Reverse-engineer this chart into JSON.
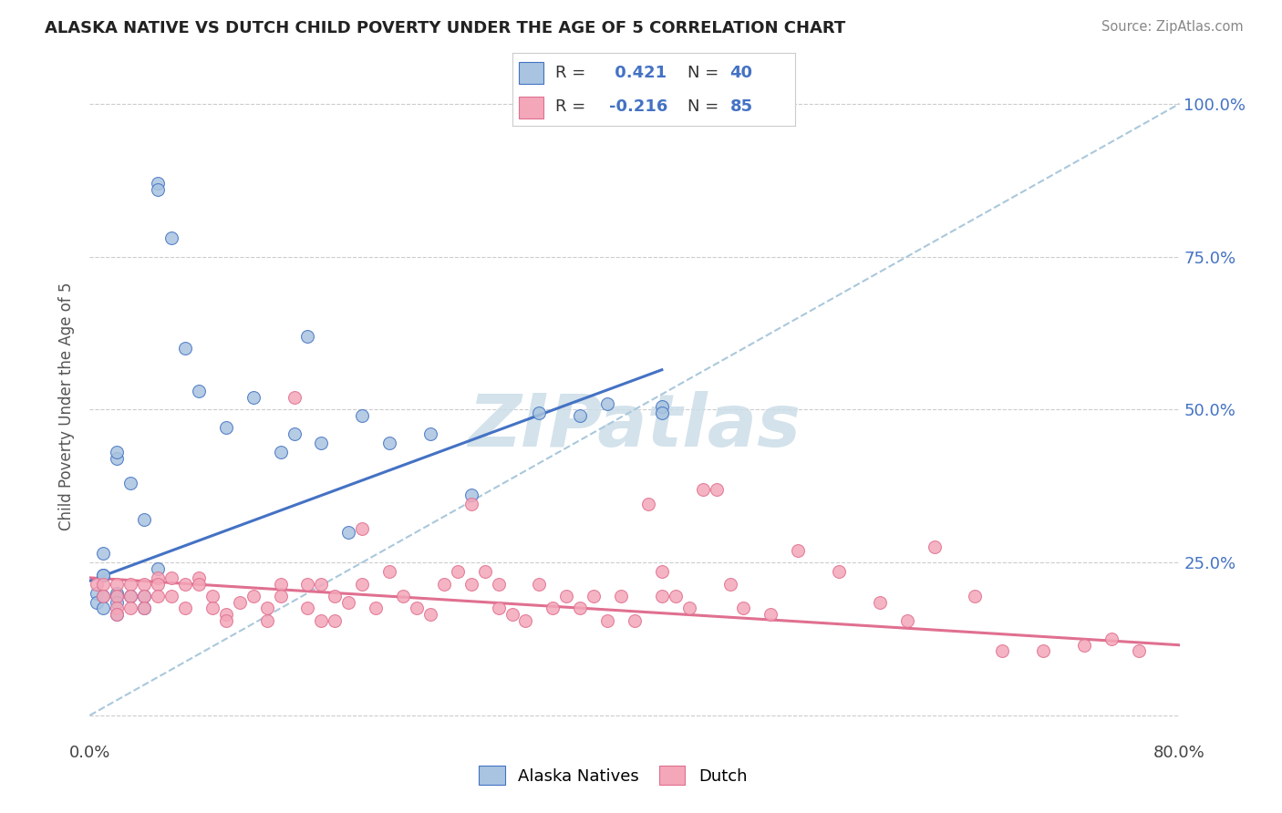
{
  "title": "ALASKA NATIVE VS DUTCH CHILD POVERTY UNDER THE AGE OF 5 CORRELATION CHART",
  "source": "Source: ZipAtlas.com",
  "ylabel": "Child Poverty Under the Age of 5",
  "xlim": [
    0.0,
    0.8
  ],
  "ylim": [
    -0.04,
    1.05
  ],
  "ytick_vals": [
    0.0,
    0.25,
    0.5,
    0.75,
    1.0
  ],
  "ytick_labels_right": [
    "",
    "25.0%",
    "50.0%",
    "75.0%",
    "100.0%"
  ],
  "alaska_R": 0.421,
  "alaska_N": 40,
  "dutch_R": -0.216,
  "dutch_N": 85,
  "alaska_color": "#a8c4e0",
  "dutch_color": "#f4a7b9",
  "alaska_line_color": "#4472c4",
  "dutch_line_color": "#e07090",
  "dashed_line_color": "#aac8dc",
  "watermark_color": "#ccdde8",
  "background_color": "#ffffff",
  "alaska_line_x": [
    0.0,
    0.42
  ],
  "alaska_line_y": [
    0.22,
    0.565
  ],
  "dutch_line_x": [
    0.0,
    0.8
  ],
  "dutch_line_y": [
    0.225,
    0.115
  ],
  "dash_line_x": [
    0.0,
    0.8
  ],
  "dash_line_y": [
    0.0,
    1.0
  ],
  "alaska_scatter_x": [
    0.005,
    0.005,
    0.01,
    0.01,
    0.01,
    0.01,
    0.02,
    0.02,
    0.02,
    0.02,
    0.03,
    0.03,
    0.04,
    0.04,
    0.05,
    0.05,
    0.06,
    0.07,
    0.08,
    0.1,
    0.12,
    0.14,
    0.15,
    0.16,
    0.17,
    0.19,
    0.2,
    0.22,
    0.25,
    0.28,
    0.01,
    0.02,
    0.02,
    0.04,
    0.05,
    0.33,
    0.36,
    0.38,
    0.42,
    0.42
  ],
  "alaska_scatter_y": [
    0.2,
    0.185,
    0.265,
    0.23,
    0.195,
    0.175,
    0.2,
    0.195,
    0.185,
    0.165,
    0.195,
    0.38,
    0.175,
    0.195,
    0.87,
    0.86,
    0.78,
    0.6,
    0.53,
    0.47,
    0.52,
    0.43,
    0.46,
    0.62,
    0.445,
    0.3,
    0.49,
    0.445,
    0.46,
    0.36,
    0.23,
    0.42,
    0.43,
    0.32,
    0.24,
    0.495,
    0.49,
    0.51,
    0.505,
    0.495
  ],
  "dutch_scatter_x": [
    0.005,
    0.01,
    0.01,
    0.02,
    0.02,
    0.02,
    0.02,
    0.03,
    0.03,
    0.03,
    0.04,
    0.04,
    0.04,
    0.05,
    0.05,
    0.05,
    0.06,
    0.06,
    0.07,
    0.07,
    0.08,
    0.08,
    0.09,
    0.09,
    0.1,
    0.1,
    0.11,
    0.12,
    0.13,
    0.13,
    0.14,
    0.14,
    0.15,
    0.16,
    0.16,
    0.17,
    0.17,
    0.18,
    0.18,
    0.19,
    0.2,
    0.2,
    0.21,
    0.22,
    0.23,
    0.24,
    0.25,
    0.26,
    0.27,
    0.28,
    0.28,
    0.29,
    0.3,
    0.3,
    0.31,
    0.32,
    0.33,
    0.34,
    0.35,
    0.36,
    0.37,
    0.38,
    0.39,
    0.4,
    0.41,
    0.42,
    0.42,
    0.43,
    0.44,
    0.45,
    0.46,
    0.47,
    0.48,
    0.5,
    0.52,
    0.55,
    0.58,
    0.6,
    0.62,
    0.65,
    0.67,
    0.7,
    0.73,
    0.75,
    0.77
  ],
  "dutch_scatter_y": [
    0.215,
    0.215,
    0.195,
    0.215,
    0.195,
    0.175,
    0.165,
    0.215,
    0.195,
    0.175,
    0.215,
    0.195,
    0.175,
    0.225,
    0.215,
    0.195,
    0.225,
    0.195,
    0.215,
    0.175,
    0.225,
    0.215,
    0.195,
    0.175,
    0.165,
    0.155,
    0.185,
    0.195,
    0.175,
    0.155,
    0.215,
    0.195,
    0.52,
    0.215,
    0.175,
    0.155,
    0.215,
    0.195,
    0.155,
    0.185,
    0.305,
    0.215,
    0.175,
    0.235,
    0.195,
    0.175,
    0.165,
    0.215,
    0.235,
    0.215,
    0.345,
    0.235,
    0.215,
    0.175,
    0.165,
    0.155,
    0.215,
    0.175,
    0.195,
    0.175,
    0.195,
    0.155,
    0.195,
    0.155,
    0.345,
    0.235,
    0.195,
    0.195,
    0.175,
    0.37,
    0.37,
    0.215,
    0.175,
    0.165,
    0.27,
    0.235,
    0.185,
    0.155,
    0.275,
    0.195,
    0.105,
    0.105,
    0.115,
    0.125,
    0.105
  ]
}
